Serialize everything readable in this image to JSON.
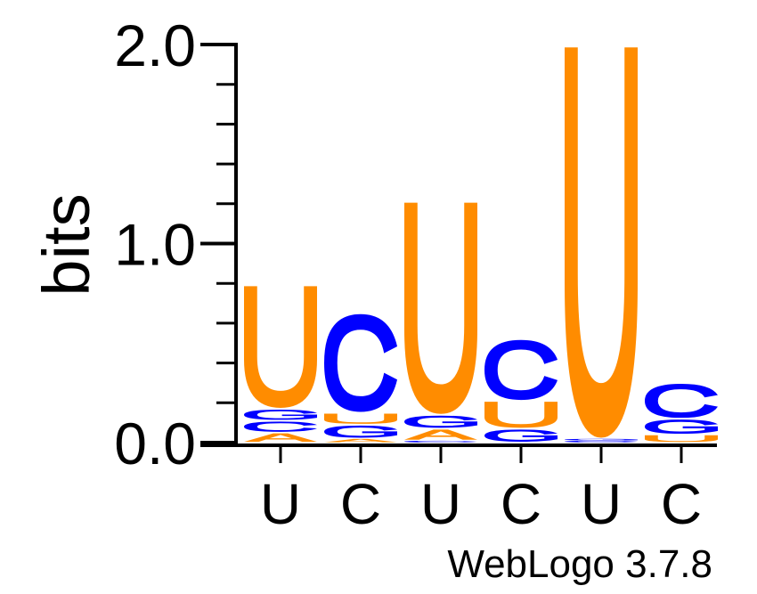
{
  "chart_data": {
    "type": "sequence-logo",
    "ylabel": "bits",
    "ylim": [
      0,
      2.0
    ],
    "yticks": [
      "0.0",
      "1.0",
      "2.0"
    ],
    "ytick_values": [
      0,
      1,
      2
    ],
    "minor_tick_step": 0.2,
    "xtick_labels": [
      "U",
      "C",
      "U",
      "C",
      "U",
      "C"
    ],
    "footer": "WebLogo 3.7.8",
    "colors": {
      "U": "#ff8c00",
      "C": "#0000ff",
      "G": "#0000ff",
      "A": "#ff8c00"
    },
    "positions": [
      {
        "label": "U",
        "stack": [
          {
            "letter": "A",
            "bits": 0.05
          },
          {
            "letter": "C",
            "bits": 0.06
          },
          {
            "letter": "G",
            "bits": 0.06
          },
          {
            "letter": "U",
            "bits": 0.62
          }
        ]
      },
      {
        "label": "C",
        "stack": [
          {
            "letter": "A",
            "bits": 0.02
          },
          {
            "letter": "G",
            "bits": 0.07
          },
          {
            "letter": "U",
            "bits": 0.06
          },
          {
            "letter": "C",
            "bits": 0.5
          }
        ]
      },
      {
        "label": "U",
        "stack": [
          {
            "letter": "C",
            "bits": 0.01
          },
          {
            "letter": "A",
            "bits": 0.06
          },
          {
            "letter": "G",
            "bits": 0.07
          },
          {
            "letter": "U",
            "bits": 1.07
          }
        ]
      },
      {
        "label": "C",
        "stack": [
          {
            "letter": "G",
            "bits": 0.07
          },
          {
            "letter": "U",
            "bits": 0.14
          },
          {
            "letter": "C",
            "bits": 0.31
          }
        ]
      },
      {
        "label": "U",
        "stack": [
          {
            "letter": "C",
            "bits": 0.01
          },
          {
            "letter": "G",
            "bits": 0.01
          },
          {
            "letter": "U",
            "bits": 1.97
          }
        ]
      },
      {
        "label": "C",
        "stack": [
          {
            "letter": "U",
            "bits": 0.04
          },
          {
            "letter": "G",
            "bits": 0.08
          },
          {
            "letter": "C",
            "bits": 0.18
          }
        ]
      }
    ]
  }
}
